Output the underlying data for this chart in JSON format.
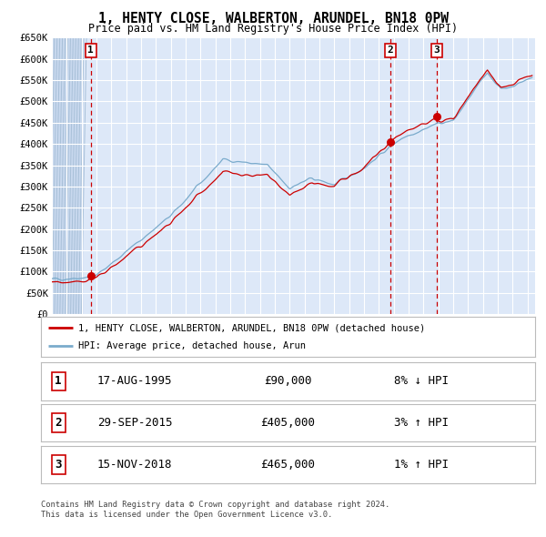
{
  "title": "1, HENTY CLOSE, WALBERTON, ARUNDEL, BN18 0PW",
  "subtitle": "Price paid vs. HM Land Registry's House Price Index (HPI)",
  "legend_line1": "1, HENTY CLOSE, WALBERTON, ARUNDEL, BN18 0PW (detached house)",
  "legend_line2": "HPI: Average price, detached house, Arun",
  "footer1": "Contains HM Land Registry data © Crown copyright and database right 2024.",
  "footer2": "This data is licensed under the Open Government Licence v3.0.",
  "sales": [
    {
      "label": "1",
      "date": "17-AUG-1995",
      "price": 90000,
      "pct": "8%",
      "dir": "↓",
      "year": 1995.62
    },
    {
      "label": "2",
      "date": "29-SEP-2015",
      "price": 405000,
      "pct": "3%",
      "dir": "↑",
      "year": 2015.75
    },
    {
      "label": "3",
      "date": "15-NOV-2018",
      "price": 465000,
      "pct": "1%",
      "dir": "↑",
      "year": 2018.87
    }
  ],
  "xmin": 1993.0,
  "xmax": 2025.5,
  "ymin": 0,
  "ymax": 650000,
  "yticks": [
    0,
    50000,
    100000,
    150000,
    200000,
    250000,
    300000,
    350000,
    400000,
    450000,
    500000,
    550000,
    600000,
    650000
  ],
  "plot_bg": "#dde8f8",
  "grid_color": "#ffffff",
  "red_line_color": "#cc0000",
  "blue_line_color": "#7aabcc",
  "vline1_color": "#cc0000",
  "vline23_color": "#cc0000"
}
